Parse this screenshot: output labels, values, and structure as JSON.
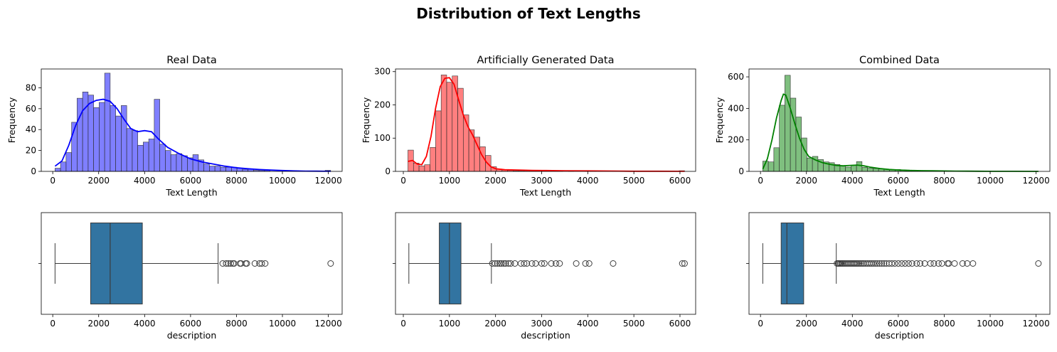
{
  "figure": {
    "suptitle": "Distribution of Text Lengths"
  },
  "chart_data": [
    {
      "type": "histogram",
      "title": "Real Data",
      "xlabel": "Text Length",
      "ylabel": "Frequency",
      "color": "#0000ff",
      "kde": true,
      "xlim": [
        -500,
        12600
      ],
      "ylim": [
        0,
        98
      ],
      "xticks": [
        0,
        2000,
        4000,
        6000,
        8000,
        10000,
        12000
      ],
      "yticks": [
        0,
        20,
        40,
        60,
        80
      ],
      "bins": [
        [
          100,
          3
        ],
        [
          340,
          9
        ],
        [
          580,
          18
        ],
        [
          820,
          47
        ],
        [
          1060,
          70
        ],
        [
          1300,
          76
        ],
        [
          1540,
          73
        ],
        [
          1780,
          61
        ],
        [
          2020,
          66
        ],
        [
          2260,
          94
        ],
        [
          2500,
          63
        ],
        [
          2740,
          53
        ],
        [
          2980,
          63
        ],
        [
          3220,
          41
        ],
        [
          3460,
          39
        ],
        [
          3700,
          25
        ],
        [
          3940,
          28
        ],
        [
          4180,
          31
        ],
        [
          4420,
          69
        ],
        [
          4660,
          26
        ],
        [
          4900,
          20
        ],
        [
          5140,
          16
        ],
        [
          5380,
          17
        ],
        [
          5620,
          15
        ],
        [
          5860,
          13
        ],
        [
          6100,
          16
        ],
        [
          6340,
          11
        ],
        [
          6580,
          7
        ],
        [
          6820,
          5
        ],
        [
          7060,
          5
        ],
        [
          7300,
          4
        ],
        [
          7540,
          4
        ],
        [
          7780,
          4
        ],
        [
          8020,
          3
        ],
        [
          8260,
          2
        ],
        [
          8500,
          2
        ],
        [
          8740,
          1
        ],
        [
          8980,
          1
        ],
        [
          9220,
          1
        ],
        [
          9460,
          0
        ],
        [
          9700,
          0
        ],
        [
          9940,
          0
        ],
        [
          10180,
          0
        ],
        [
          10420,
          0
        ],
        [
          10660,
          0
        ],
        [
          10900,
          0
        ],
        [
          11140,
          0
        ],
        [
          11380,
          0
        ],
        [
          11620,
          0
        ],
        [
          11860,
          1
        ]
      ],
      "bin_width": 240,
      "kde_curve": [
        [
          100,
          5
        ],
        [
          400,
          10
        ],
        [
          700,
          25
        ],
        [
          1000,
          44
        ],
        [
          1300,
          58
        ],
        [
          1600,
          65
        ],
        [
          1900,
          68
        ],
        [
          2200,
          69
        ],
        [
          2500,
          67
        ],
        [
          2800,
          60
        ],
        [
          3100,
          50
        ],
        [
          3400,
          41
        ],
        [
          3700,
          38
        ],
        [
          4000,
          39
        ],
        [
          4300,
          38
        ],
        [
          4600,
          31
        ],
        [
          5000,
          23
        ],
        [
          5500,
          17
        ],
        [
          6000,
          12
        ],
        [
          6500,
          9
        ],
        [
          7000,
          7
        ],
        [
          7500,
          5
        ],
        [
          8000,
          3.5
        ],
        [
          8500,
          2.5
        ],
        [
          9000,
          1.8
        ],
        [
          9500,
          1.2
        ],
        [
          10000,
          0.8
        ],
        [
          10500,
          0.5
        ],
        [
          11000,
          0.3
        ],
        [
          11500,
          0.2
        ],
        [
          12100,
          0.1
        ]
      ]
    },
    {
      "type": "histogram",
      "title": "Artificially Generated Data",
      "xlabel": "Text Length",
      "ylabel": "Frequency",
      "color": "#ff0000",
      "kde": true,
      "xlim": [
        -170,
        6340
      ],
      "ylim": [
        0,
        308
      ],
      "xticks": [
        0,
        1000,
        2000,
        3000,
        4000,
        5000,
        6000
      ],
      "yticks": [
        0,
        100,
        200,
        300
      ],
      "bins": [
        [
          100,
          64
        ],
        [
          220,
          25
        ],
        [
          340,
          16
        ],
        [
          460,
          20
        ],
        [
          580,
          72
        ],
        [
          700,
          182
        ],
        [
          820,
          290
        ],
        [
          940,
          268
        ],
        [
          1060,
          287
        ],
        [
          1180,
          250
        ],
        [
          1300,
          170
        ],
        [
          1420,
          125
        ],
        [
          1540,
          103
        ],
        [
          1660,
          74
        ],
        [
          1780,
          48
        ],
        [
          1900,
          14
        ],
        [
          2020,
          7
        ],
        [
          2140,
          4
        ],
        [
          2260,
          3
        ],
        [
          2380,
          2
        ],
        [
          2500,
          2
        ],
        [
          2620,
          2
        ],
        [
          2740,
          1
        ],
        [
          2860,
          1
        ],
        [
          2980,
          1
        ],
        [
          3100,
          1
        ],
        [
          3220,
          1
        ],
        [
          3340,
          1
        ],
        [
          3460,
          0
        ],
        [
          3580,
          1
        ],
        [
          3700,
          0
        ],
        [
          3820,
          0
        ],
        [
          3940,
          1
        ],
        [
          4060,
          1
        ],
        [
          4180,
          0
        ],
        [
          4300,
          0
        ],
        [
          4420,
          0
        ],
        [
          4540,
          1
        ],
        [
          4660,
          0
        ],
        [
          4780,
          0
        ],
        [
          4900,
          0
        ],
        [
          5020,
          0
        ],
        [
          5140,
          0
        ],
        [
          5260,
          0
        ],
        [
          5380,
          0
        ],
        [
          5500,
          0
        ],
        [
          5620,
          0
        ],
        [
          5740,
          0
        ],
        [
          5860,
          0
        ],
        [
          5980,
          2
        ]
      ],
      "bin_width": 120,
      "kde_curve": [
        [
          100,
          30
        ],
        [
          200,
          33
        ],
        [
          300,
          22
        ],
        [
          400,
          20
        ],
        [
          500,
          45
        ],
        [
          600,
          105
        ],
        [
          700,
          190
        ],
        [
          800,
          255
        ],
        [
          900,
          280
        ],
        [
          1000,
          282
        ],
        [
          1100,
          262
        ],
        [
          1200,
          215
        ],
        [
          1300,
          170
        ],
        [
          1400,
          135
        ],
        [
          1500,
          110
        ],
        [
          1600,
          80
        ],
        [
          1700,
          50
        ],
        [
          1800,
          28
        ],
        [
          1900,
          14
        ],
        [
          2000,
          8
        ],
        [
          2200,
          5
        ],
        [
          2500,
          4
        ],
        [
          2800,
          3
        ],
        [
          3100,
          2.5
        ],
        [
          3500,
          2
        ],
        [
          4000,
          1.5
        ],
        [
          4500,
          1
        ],
        [
          5000,
          0.5
        ],
        [
          5500,
          0.4
        ],
        [
          6100,
          0.3
        ]
      ]
    },
    {
      "type": "histogram",
      "title": "Combined Data",
      "xlabel": "Text Length",
      "ylabel": "Frequency",
      "color": "#008000",
      "kde": true,
      "xlim": [
        -500,
        12600
      ],
      "ylim": [
        0,
        650
      ],
      "xticks": [
        0,
        2000,
        4000,
        6000,
        8000,
        10000,
        12000
      ],
      "yticks": [
        0,
        200,
        400,
        600
      ],
      "bins": [
        [
          100,
          65
        ],
        [
          340,
          60
        ],
        [
          580,
          150
        ],
        [
          820,
          420
        ],
        [
          1060,
          610
        ],
        [
          1300,
          465
        ],
        [
          1540,
          345
        ],
        [
          1780,
          212
        ],
        [
          2020,
          85
        ],
        [
          2260,
          95
        ],
        [
          2500,
          75
        ],
        [
          2740,
          60
        ],
        [
          2980,
          55
        ],
        [
          3220,
          44
        ],
        [
          3460,
          37
        ],
        [
          3700,
          27
        ],
        [
          3940,
          38
        ],
        [
          4180,
          62
        ],
        [
          4420,
          26
        ],
        [
          4660,
          20
        ],
        [
          4900,
          18
        ],
        [
          5140,
          15
        ],
        [
          5380,
          14
        ],
        [
          5620,
          12
        ],
        [
          5860,
          12
        ],
        [
          6100,
          10
        ],
        [
          6340,
          8
        ],
        [
          6580,
          6
        ],
        [
          6820,
          5
        ],
        [
          7060,
          5
        ],
        [
          7300,
          4
        ],
        [
          7540,
          4
        ],
        [
          7780,
          3
        ],
        [
          8020,
          3
        ],
        [
          8260,
          2
        ],
        [
          8500,
          2
        ],
        [
          8740,
          1
        ],
        [
          8980,
          1
        ],
        [
          9220,
          1
        ],
        [
          9460,
          0
        ],
        [
          9700,
          0
        ],
        [
          9940,
          0
        ],
        [
          10180,
          0
        ],
        [
          10420,
          0
        ],
        [
          10660,
          0
        ],
        [
          10900,
          0
        ],
        [
          11140,
          0
        ],
        [
          11380,
          0
        ],
        [
          11620,
          0
        ],
        [
          11860,
          1
        ]
      ],
      "bin_width": 240,
      "kde_curve": [
        [
          100,
          15
        ],
        [
          300,
          80
        ],
        [
          500,
          200
        ],
        [
          700,
          340
        ],
        [
          900,
          450
        ],
        [
          1000,
          490
        ],
        [
          1100,
          485
        ],
        [
          1300,
          400
        ],
        [
          1500,
          300
        ],
        [
          1700,
          210
        ],
        [
          1900,
          140
        ],
        [
          2100,
          95
        ],
        [
          2400,
          72
        ],
        [
          2700,
          55
        ],
        [
          3000,
          45
        ],
        [
          3300,
          38
        ],
        [
          3600,
          35
        ],
        [
          3900,
          38
        ],
        [
          4200,
          40
        ],
        [
          4500,
          35
        ],
        [
          4800,
          26
        ],
        [
          5200,
          18
        ],
        [
          5600,
          12
        ],
        [
          6000,
          9
        ],
        [
          6500,
          6
        ],
        [
          7000,
          4.5
        ],
        [
          7500,
          3.5
        ],
        [
          8000,
          2.5
        ],
        [
          8500,
          1.8
        ],
        [
          9000,
          1.2
        ],
        [
          9500,
          0.8
        ],
        [
          10000,
          0.5
        ],
        [
          11000,
          0.3
        ],
        [
          12100,
          0.1
        ]
      ]
    },
    {
      "type": "box",
      "xlabel": "description",
      "color": "#3274a1",
      "xlim": [
        -500,
        12600
      ],
      "xticks": [
        0,
        2000,
        4000,
        6000,
        8000,
        10000,
        12000
      ],
      "whisker_low": 100,
      "q1": 1650,
      "median": 2500,
      "q3": 3900,
      "whisker_high": 7200,
      "outliers": [
        7400,
        7550,
        7650,
        7750,
        7850,
        7900,
        8150,
        8200,
        8400,
        8450,
        8800,
        9000,
        9100,
        9250,
        12100
      ]
    },
    {
      "type": "box",
      "xlabel": "description",
      "color": "#3274a1",
      "xlim": [
        -170,
        6340
      ],
      "xticks": [
        0,
        1000,
        2000,
        3000,
        4000,
        5000,
        6000
      ],
      "whisker_low": 120,
      "q1": 780,
      "median": 1000,
      "q3": 1250,
      "whisker_high": 1910,
      "outliers": [
        1930,
        1990,
        2040,
        2090,
        2130,
        2180,
        2220,
        2280,
        2330,
        2420,
        2550,
        2620,
        2680,
        2790,
        2870,
        3000,
        3060,
        3210,
        3310,
        3390,
        3750,
        3950,
        4030,
        4550,
        6050,
        6100
      ]
    },
    {
      "type": "box",
      "xlabel": "description",
      "color": "#3274a1",
      "xlim": [
        -500,
        12600
      ],
      "xticks": [
        0,
        2000,
        4000,
        6000,
        8000,
        10000,
        12000
      ],
      "whisker_low": 100,
      "q1": 900,
      "median": 1150,
      "q3": 1880,
      "whisker_high": 3300,
      "outliers": [
        3330,
        3380,
        3420,
        3470,
        3520,
        3570,
        3620,
        3680,
        3740,
        3800,
        3860,
        3920,
        3980,
        4040,
        4100,
        4160,
        4220,
        4290,
        4360,
        4430,
        4500,
        4580,
        4660,
        4740,
        4820,
        4900,
        4990,
        5080,
        5180,
        5280,
        5380,
        5480,
        5600,
        5720,
        5850,
        6000,
        6150,
        6300,
        6450,
        6600,
        6800,
        6950,
        7150,
        7400,
        7550,
        7750,
        7900,
        8150,
        8200,
        8450,
        8800,
        9000,
        9250,
        12100
      ]
    }
  ]
}
